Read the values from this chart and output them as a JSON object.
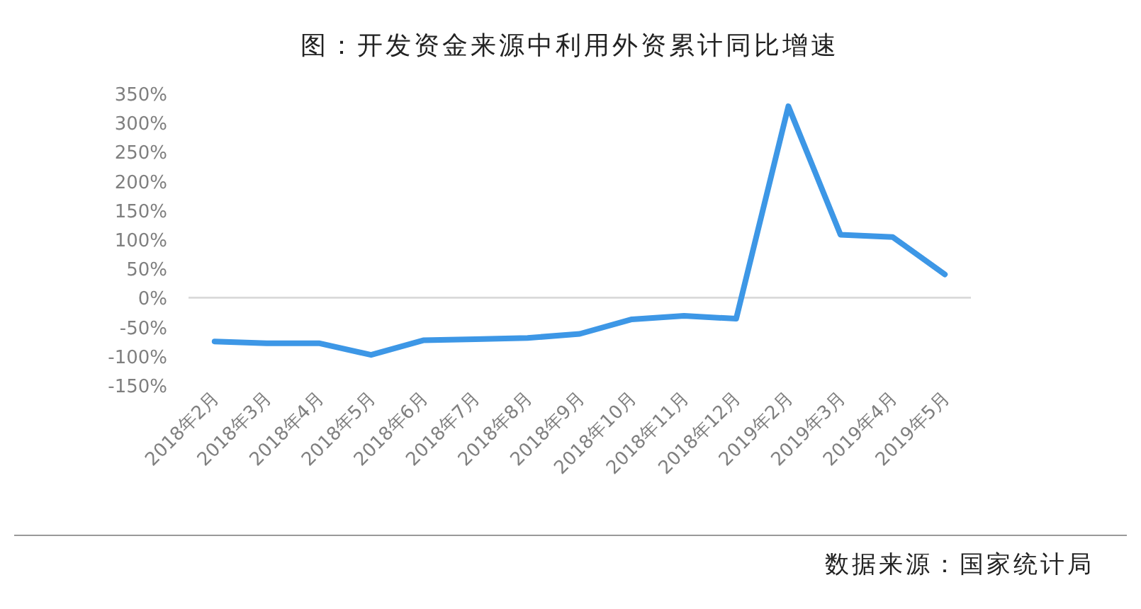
{
  "chart_data": {
    "type": "line",
    "title": "图：开发资金来源中利用外资累计同比增速",
    "categories": [
      "2018年2月",
      "2018年3月",
      "2018年4月",
      "2018年5月",
      "2018年6月",
      "2018年7月",
      "2018年8月",
      "2018年9月",
      "2018年10月",
      "2018年11月",
      "2018年12月",
      "2019年2月",
      "2019年3月",
      "2019年4月",
      "2019年5月"
    ],
    "series": [
      {
        "color": "#3d97e6",
        "values": [
          -75,
          -78,
          -78,
          -98,
          -73,
          -71,
          -69,
          -62,
          -37,
          -31,
          -36,
          328,
          108,
          104,
          40
        ]
      }
    ],
    "ylim": [
      -150,
      350
    ],
    "yticks": [
      {
        "value": -150,
        "label": "-150%"
      },
      {
        "value": -100,
        "label": "-100%"
      },
      {
        "value": -50,
        "label": "-50%"
      },
      {
        "value": 0,
        "label": "0%"
      },
      {
        "value": 50,
        "label": "50%"
      },
      {
        "value": 100,
        "label": "100%"
      },
      {
        "value": 150,
        "label": "150%"
      },
      {
        "value": 200,
        "label": "200%"
      },
      {
        "value": 250,
        "label": "250%"
      },
      {
        "value": 300,
        "label": "300%"
      },
      {
        "value": 350,
        "label": "350%"
      }
    ],
    "marker": "none",
    "line_style": "solid",
    "annotations": [
      "数据来源：国家统计局"
    ]
  }
}
